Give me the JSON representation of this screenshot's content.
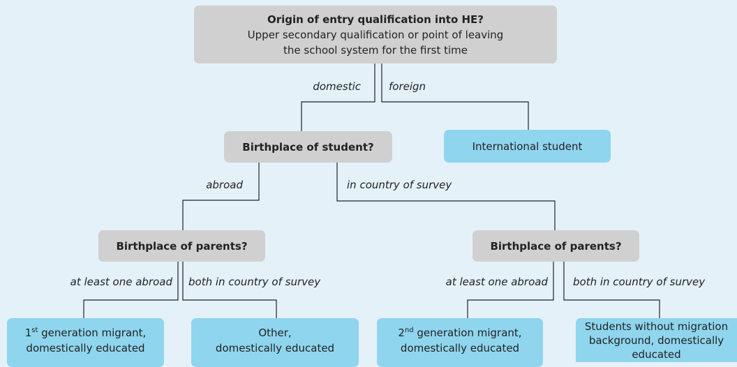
{
  "root": {
    "title": "Origin of entry qualification into HE?",
    "lines": [
      "Upper secondary qualification or point of leaving",
      "the school system for the first time"
    ]
  },
  "edges": [
    "domestic",
    "foreign",
    "abroad",
    "in country of survey",
    "at least one abroad",
    "both in country of survey",
    "at least one abroad",
    "both in country of survey"
  ],
  "nodes": [
    "Birthplace of student?",
    "International student",
    "Birthplace of parents?",
    "Birthplace of parents?"
  ],
  "leaves": [
    {
      "ordinal": "1",
      "suffix": "st",
      "rest": " generation migrant,",
      "lines": [
        "domestically educated"
      ]
    },
    {
      "lines": [
        "Other,",
        "domestically educated"
      ]
    },
    {
      "ordinal": "2",
      "suffix": "nd",
      "rest": " generation migrant,",
      "lines": [
        "domestically educated"
      ]
    },
    {
      "lines": [
        "Students without migration",
        "background, domestically",
        "educated"
      ]
    }
  ]
}
